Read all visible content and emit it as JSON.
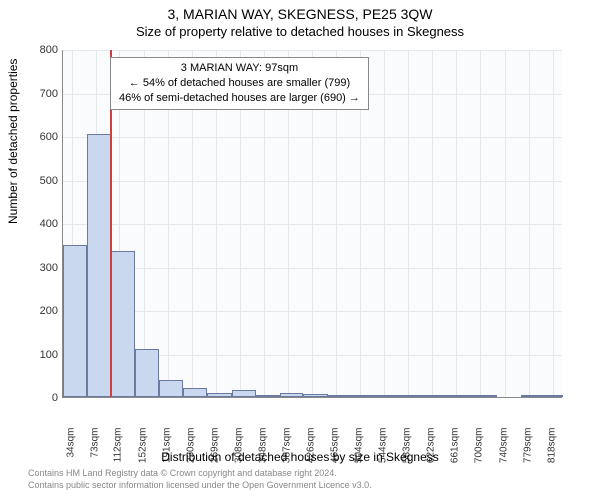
{
  "title": "3, MARIAN WAY, SKEGNESS, PE25 3QW",
  "subtitle": "Size of property relative to detached houses in Skegness",
  "chart": {
    "type": "histogram",
    "ylabel": "Number of detached properties",
    "xlabel": "Distribution of detached houses by size in Skegness",
    "ylim": [
      0,
      800
    ],
    "ytick_step": 100,
    "yticks": [
      0,
      100,
      200,
      300,
      400,
      500,
      600,
      700,
      800
    ],
    "xticks": [
      34,
      73,
      112,
      152,
      191,
      230,
      269,
      308,
      348,
      387,
      426,
      465,
      504,
      544,
      583,
      622,
      661,
      700,
      740,
      779,
      818
    ],
    "xtick_suffix": "sqm",
    "bar_color": "#c9d7ef",
    "bar_border": "#6a7aa0",
    "background_color": "#fafbfc",
    "grid_color": "#e4e7ec",
    "marker_color": "#d04040",
    "marker_x": 97,
    "x_range": [
      20,
      835
    ],
    "bars": [
      {
        "x0": 20,
        "x1": 59,
        "y": 350
      },
      {
        "x0": 59,
        "x1": 98,
        "y": 605
      },
      {
        "x0": 98,
        "x1": 138,
        "y": 335
      },
      {
        "x0": 138,
        "x1": 177,
        "y": 110
      },
      {
        "x0": 177,
        "x1": 216,
        "y": 40
      },
      {
        "x0": 216,
        "x1": 255,
        "y": 20
      },
      {
        "x0": 255,
        "x1": 295,
        "y": 10
      },
      {
        "x0": 295,
        "x1": 334,
        "y": 15
      },
      {
        "x0": 334,
        "x1": 373,
        "y": 5
      },
      {
        "x0": 373,
        "x1": 412,
        "y": 10
      },
      {
        "x0": 412,
        "x1": 452,
        "y": 8
      },
      {
        "x0": 452,
        "x1": 491,
        "y": 3
      },
      {
        "x0": 491,
        "x1": 530,
        "y": 3
      },
      {
        "x0": 530,
        "x1": 569,
        "y": 2
      },
      {
        "x0": 569,
        "x1": 609,
        "y": 2
      },
      {
        "x0": 609,
        "x1": 648,
        "y": 3
      },
      {
        "x0": 648,
        "x1": 687,
        "y": 2
      },
      {
        "x0": 687,
        "x1": 727,
        "y": 2
      },
      {
        "x0": 727,
        "x1": 766,
        "y": 0
      },
      {
        "x0": 766,
        "x1": 805,
        "y": 2
      },
      {
        "x0": 805,
        "x1": 835,
        "y": 3
      }
    ]
  },
  "annotation": {
    "line1": "3 MARIAN WAY: 97sqm",
    "line2": "← 54% of detached houses are smaller (799)",
    "line3": "46% of semi-detached houses are larger (690) →"
  },
  "footer": {
    "line1": "Contains HM Land Registry data © Crown copyright and database right 2024.",
    "line2": "Contains public sector information licensed under the Open Government Licence v3.0."
  }
}
